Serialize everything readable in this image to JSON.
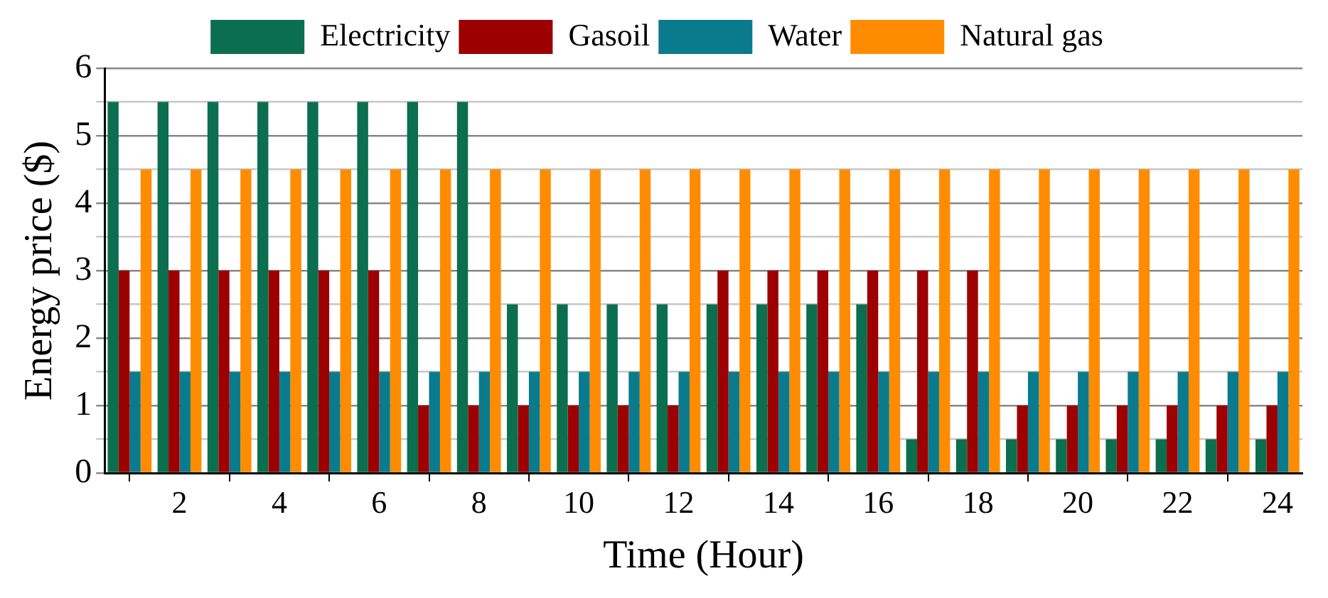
{
  "chart_data": {
    "type": "bar",
    "xlabel": "Time (Hour)",
    "ylabel": "Energy price ($)",
    "x": [
      1,
      2,
      3,
      4,
      5,
      6,
      7,
      8,
      9,
      10,
      11,
      12,
      13,
      14,
      15,
      16,
      17,
      18,
      19,
      20,
      21,
      22,
      23,
      24
    ],
    "xlim": [
      0.5,
      24.5
    ],
    "xticks": [
      2,
      4,
      6,
      8,
      10,
      12,
      14,
      16,
      18,
      20,
      22,
      24
    ],
    "series": [
      {
        "name": "Electricity",
        "color": "#0b6e4f",
        "values": [
          5.5,
          5.5,
          5.5,
          5.5,
          5.5,
          5.5,
          5.5,
          5.5,
          2.5,
          2.5,
          2.5,
          2.5,
          2.5,
          2.5,
          2.5,
          2.5,
          0.5,
          0.5,
          0.5,
          0.5,
          0.5,
          0.5,
          0.5,
          0.5
        ]
      },
      {
        "name": "Gasoil",
        "color": "#9c0000",
        "values": [
          3,
          3,
          3,
          3,
          3,
          3,
          1,
          1,
          1,
          1,
          1,
          1,
          3,
          3,
          3,
          3,
          3,
          3,
          1,
          1,
          1,
          1,
          1,
          1
        ]
      },
      {
        "name": "Water",
        "color": "#0a7b8c",
        "values": [
          1.5,
          1.5,
          1.5,
          1.5,
          1.5,
          1.5,
          1.5,
          1.5,
          1.5,
          1.5,
          1.5,
          1.5,
          1.5,
          1.5,
          1.5,
          1.5,
          1.5,
          1.5,
          1.5,
          1.5,
          1.5,
          1.5,
          1.5,
          1.5
        ]
      },
      {
        "name": "Natural gas",
        "color": "#ff8c00",
        "values": [
          4.5,
          4.5,
          4.5,
          4.5,
          4.5,
          4.5,
          4.5,
          4.5,
          4.5,
          4.5,
          4.5,
          4.5,
          4.5,
          4.5,
          4.5,
          4.5,
          4.5,
          4.5,
          4.5,
          4.5,
          4.5,
          4.5,
          4.5,
          4.5
        ]
      }
    ],
    "ylim": [
      0,
      6
    ],
    "yticks": [
      0,
      {
        "value": 0.5,
        "label": null
      },
      1,
      {
        "value": 1.5,
        "label": null
      },
      2,
      {
        "value": 2.5,
        "label": null
      },
      3,
      {
        "value": 3.5,
        "label": null
      },
      4,
      {
        "value": 4.5,
        "label": null
      },
      5,
      {
        "value": 5.5,
        "label": null
      },
      6
    ],
    "grid": "y",
    "legend": "top"
  }
}
